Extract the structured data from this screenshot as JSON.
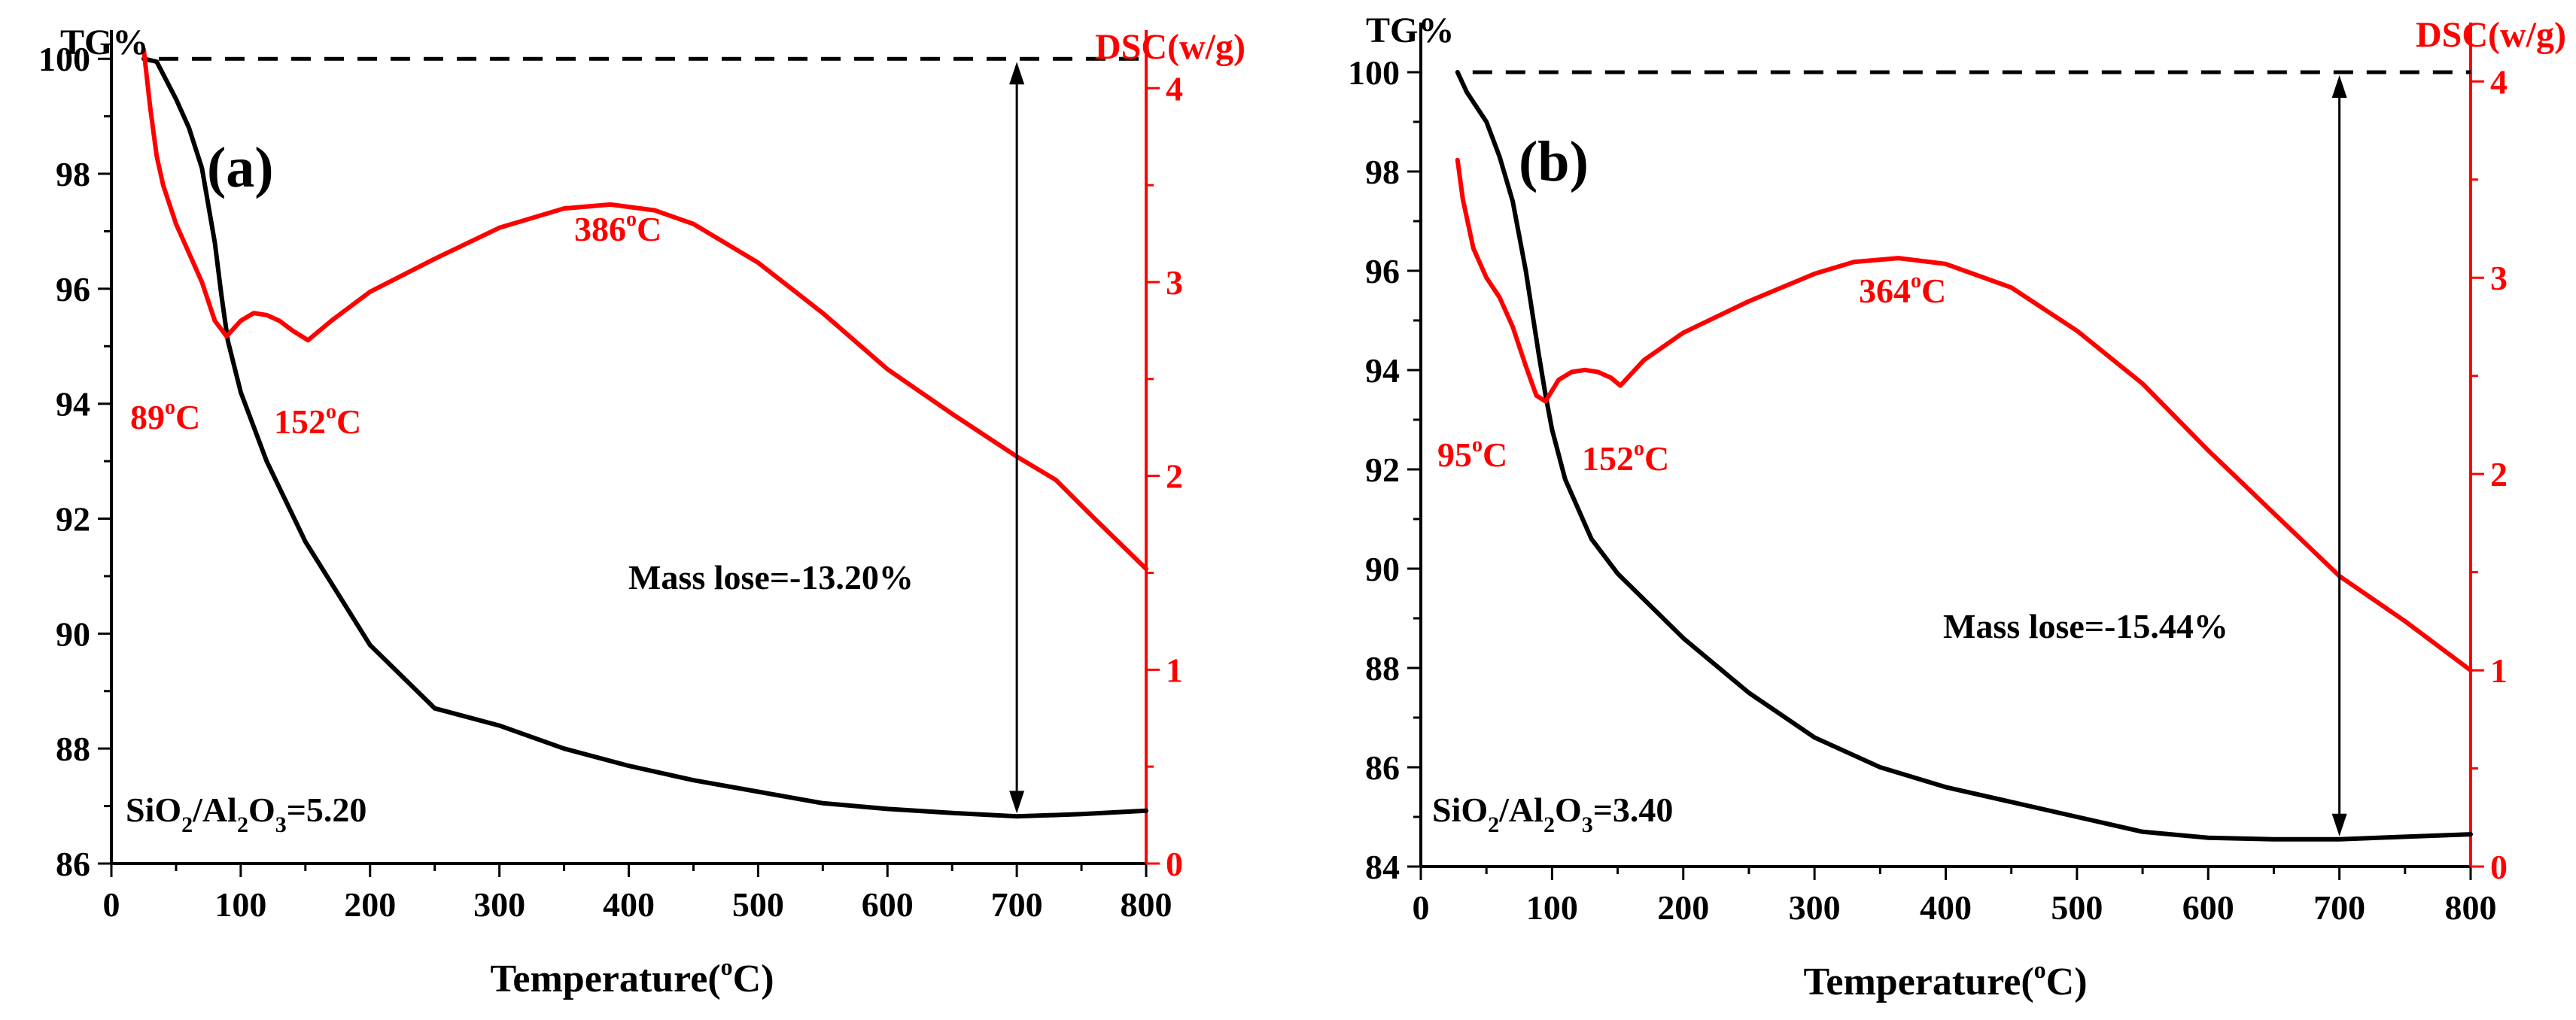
{
  "chart_data": [
    {
      "type": "line",
      "panel_label": "(a)",
      "xlabel_main": "Temperature(",
      "xlabel_sup": "o",
      "xlabel_end": "C)",
      "ylabel_left": "TG%",
      "ylabel_right": "DSC(w/g)",
      "xlim": [
        0,
        800
      ],
      "ylim_left": [
        86,
        100.5
      ],
      "ylim_right": [
        0,
        4.3
      ],
      "xticks": [
        0,
        100,
        200,
        300,
        400,
        500,
        600,
        700,
        800
      ],
      "yticks_left": [
        86,
        88,
        90,
        92,
        94,
        96,
        98,
        100
      ],
      "yticks_right": [
        0,
        1,
        2,
        3,
        4
      ],
      "reference_line_y": 100,
      "series": [
        {
          "axis": "left",
          "color": "#000000",
          "x": [
            25,
            35,
            50,
            60,
            70,
            80,
            85,
            90,
            100,
            120,
            150,
            200,
            250,
            300,
            350,
            400,
            450,
            500,
            550,
            600,
            650,
            700,
            750,
            800
          ],
          "y": [
            100,
            99.95,
            99.3,
            98.8,
            98.1,
            96.8,
            95.9,
            95.1,
            94.2,
            93.0,
            91.6,
            89.8,
            88.7,
            88.4,
            88.0,
            87.7,
            87.45,
            87.25,
            87.05,
            86.95,
            86.88,
            86.82,
            86.86,
            86.92
          ]
        },
        {
          "axis": "right",
          "color": "#ff0000",
          "x": [
            25,
            30,
            35,
            40,
            50,
            60,
            70,
            80,
            89,
            100,
            110,
            120,
            130,
            140,
            152,
            170,
            200,
            250,
            300,
            350,
            386,
            420,
            450,
            500,
            550,
            600,
            650,
            700,
            730,
            760,
            800
          ],
          "y": [
            4.2,
            3.9,
            3.65,
            3.5,
            3.3,
            3.15,
            3.0,
            2.8,
            2.72,
            2.8,
            2.84,
            2.83,
            2.8,
            2.75,
            2.7,
            2.8,
            2.95,
            3.12,
            3.28,
            3.38,
            3.4,
            3.37,
            3.3,
            3.1,
            2.84,
            2.55,
            2.32,
            2.1,
            1.98,
            1.78,
            1.52
          ]
        }
      ],
      "annotations": [
        {
          "text": "89",
          "sup": "o",
          "end": "C"
        },
        {
          "text": "152",
          "sup": "o",
          "end": "C"
        },
        {
          "text": "386",
          "sup": "o",
          "end": "C"
        },
        {
          "text": "Mass lose=-13.20%"
        }
      ],
      "ratio_text": {
        "a": "SiO",
        "b": "2",
        "c": "/Al",
        "d": "2",
        "e": "O",
        "f": "3",
        "g": "=5.20"
      }
    },
    {
      "type": "line",
      "panel_label": "(b)",
      "xlabel_main": "Temperature(",
      "xlabel_sup": "o",
      "xlabel_end": "C)",
      "ylabel_left": "TG%",
      "ylabel_right": "DSC(w/g)",
      "xlim": [
        0,
        800
      ],
      "ylim_left": [
        84,
        101
      ],
      "ylim_right": [
        0,
        4.3
      ],
      "xticks": [
        0,
        100,
        200,
        300,
        400,
        500,
        600,
        700,
        800
      ],
      "yticks_left": [
        84,
        86,
        88,
        90,
        92,
        94,
        96,
        98,
        100
      ],
      "yticks_right": [
        0,
        1,
        2,
        3,
        4
      ],
      "reference_line_y": 100,
      "series": [
        {
          "axis": "left",
          "color": "#000000",
          "x": [
            28,
            35,
            50,
            60,
            70,
            80,
            90,
            95,
            100,
            110,
            130,
            150,
            200,
            250,
            300,
            350,
            400,
            450,
            500,
            550,
            600,
            650,
            700,
            750,
            800
          ],
          "y": [
            100,
            99.6,
            99.0,
            98.3,
            97.4,
            96.0,
            94.3,
            93.5,
            92.8,
            91.8,
            90.6,
            89.9,
            88.6,
            87.5,
            86.6,
            86.0,
            85.6,
            85.3,
            85.0,
            84.7,
            84.58,
            84.55,
            84.55,
            84.6,
            84.65
          ]
        },
        {
          "axis": "right",
          "color": "#ff0000",
          "x": [
            28,
            32,
            40,
            50,
            60,
            70,
            80,
            88,
            95,
            105,
            115,
            125,
            135,
            145,
            152,
            170,
            200,
            250,
            300,
            330,
            364,
            400,
            450,
            500,
            550,
            600,
            650,
            700,
            750,
            780,
            800
          ],
          "y": [
            3.6,
            3.4,
            3.15,
            3.0,
            2.9,
            2.75,
            2.55,
            2.4,
            2.37,
            2.48,
            2.52,
            2.53,
            2.52,
            2.49,
            2.45,
            2.58,
            2.72,
            2.88,
            3.02,
            3.08,
            3.1,
            3.07,
            2.95,
            2.73,
            2.46,
            2.12,
            1.8,
            1.48,
            1.25,
            1.1,
            1.0
          ]
        }
      ],
      "annotations": [
        {
          "text": "95",
          "sup": "o",
          "end": "C"
        },
        {
          "text": "152",
          "sup": "o",
          "end": "C"
        },
        {
          "text": "364",
          "sup": "o",
          "end": "C"
        },
        {
          "text": "Mass lose=-15.44%"
        }
      ],
      "ratio_text": {
        "a": "SiO",
        "b": "2",
        "c": "/Al",
        "d": "2",
        "e": "O",
        "f": "3",
        "g": "=3.40"
      }
    }
  ]
}
